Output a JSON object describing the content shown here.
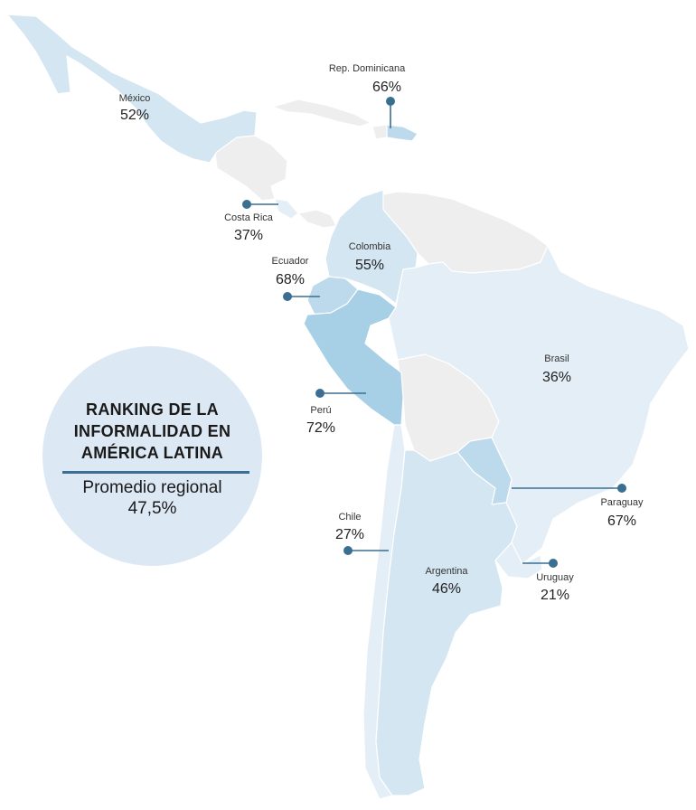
{
  "colors": {
    "land_other": "#eeeeee",
    "low": "#e4eef6",
    "mid": "#d3e6f2",
    "high": "#bcdaec",
    "top": "#a7cfe5",
    "leader": "#3b6e93",
    "circle": "#dde8f5",
    "divider": "#3b6e93"
  },
  "ranking": {
    "title_line1": "RANKING DE LA",
    "title_line2": "INFORMALIDAD EN",
    "title_line3": "AMÉRICA LATINA",
    "subtitle": "Promedio regional",
    "average": "47,5%"
  },
  "countries": [
    {
      "id": "mexico",
      "name": "México",
      "value": "52%",
      "level": "mid"
    },
    {
      "id": "rep-dominicana",
      "name": "Rep. Dominicana",
      "value": "66%",
      "level": "high"
    },
    {
      "id": "costa-rica",
      "name": "Costa Rica",
      "value": "37%",
      "level": "low"
    },
    {
      "id": "colombia",
      "name": "Colombia",
      "value": "55%",
      "level": "mid"
    },
    {
      "id": "ecuador",
      "name": "Ecuador",
      "value": "68%",
      "level": "high"
    },
    {
      "id": "peru",
      "name": "Perú",
      "value": "72%",
      "level": "top"
    },
    {
      "id": "brasil",
      "name": "Brasil",
      "value": "36%",
      "level": "low"
    },
    {
      "id": "paraguay",
      "name": "Paraguay",
      "value": "67%",
      "level": "high"
    },
    {
      "id": "chile",
      "name": "Chile",
      "value": "27%",
      "level": "low"
    },
    {
      "id": "argentina",
      "name": "Argentina",
      "value": "46%",
      "level": "mid"
    },
    {
      "id": "uruguay",
      "name": "Uruguay",
      "value": "21%",
      "level": "low"
    }
  ]
}
